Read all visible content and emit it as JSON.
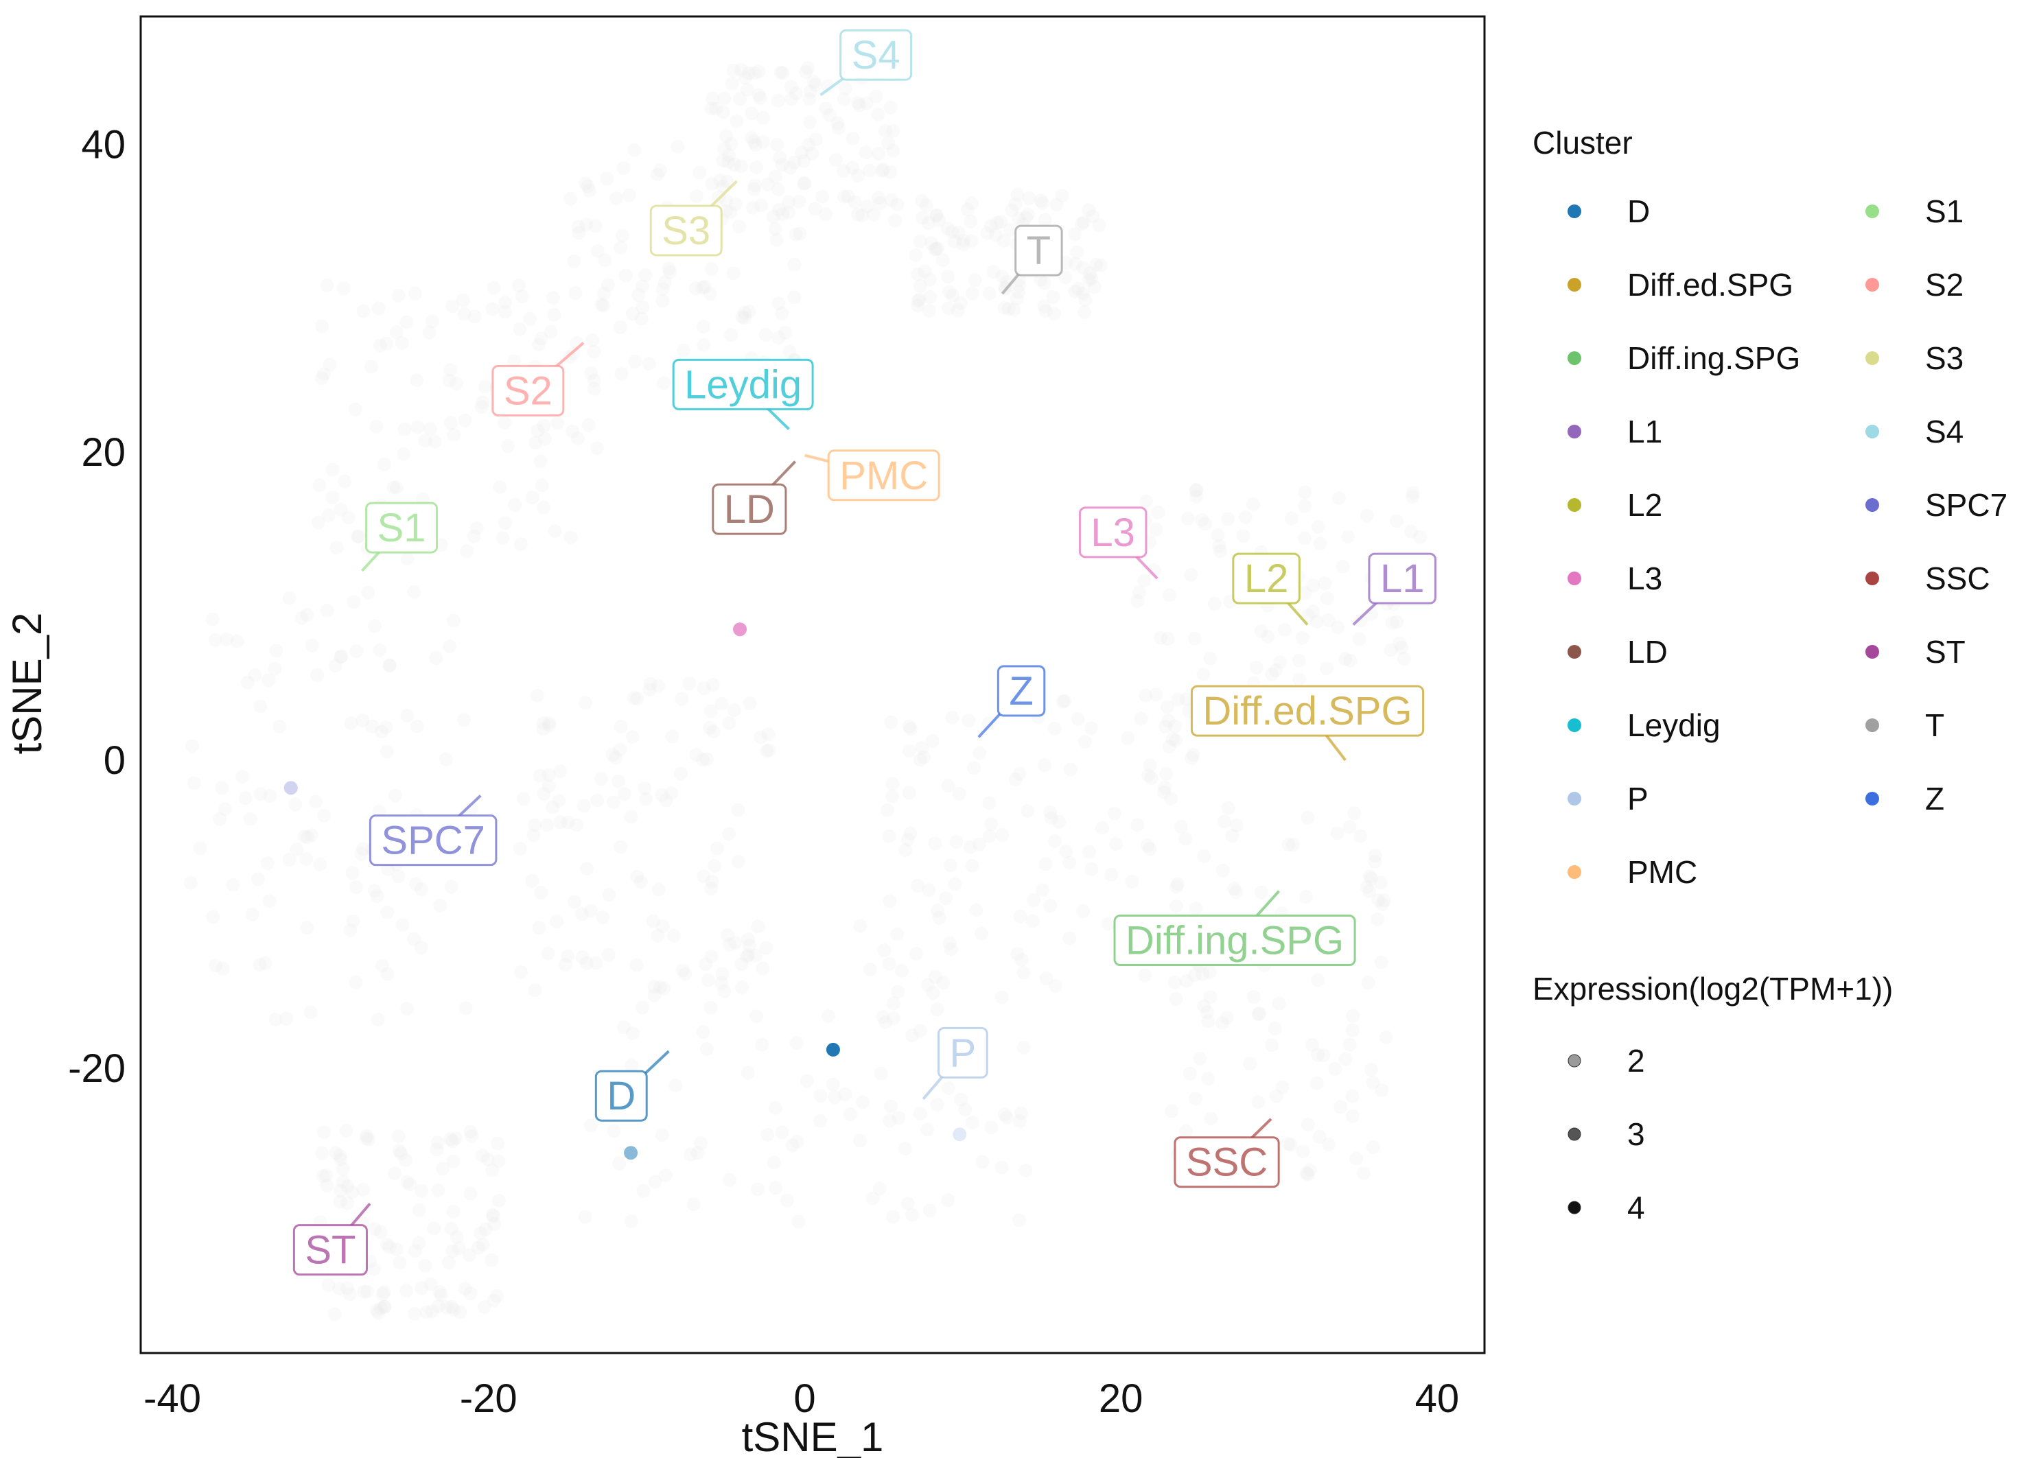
{
  "chart_data": {
    "type": "scatter",
    "xlabel": "tSNE_1",
    "ylabel": "tSNE_2",
    "xlim": [
      -42,
      43
    ],
    "ylim": [
      -38.5,
      48.3
    ],
    "x_ticks": [
      -40,
      -20,
      0,
      20,
      40
    ],
    "x_tick_labels": [
      "-40",
      "-20",
      "0",
      "20",
      "40"
    ],
    "y_ticks": [
      -20,
      0,
      20,
      40
    ],
    "y_tick_labels": [
      "-20",
      "0",
      "20",
      "40"
    ],
    "grid": false,
    "legend_position": "right",
    "colors": {
      "D": "#1f77b4",
      "Diff.ed.SPG": "#c9a227",
      "Diff.ing.SPG": "#6cc36c",
      "L1": "#9467bd",
      "L2": "#b5b82e",
      "L3": "#e377c2",
      "LD": "#8c564b",
      "Leydig": "#17becf",
      "P": "#aec7e8",
      "PMC": "#ffbb78",
      "S1": "#98df8a",
      "S2": "#ff9896",
      "S3": "#dbdb8d",
      "S4": "#9edae5",
      "SPC7": "#6b6ecf",
      "SSC": "#a94442",
      "ST": "#a5479a",
      "T": "#a0a0a0",
      "Z": "#3b6fe0"
    },
    "cluster_labels": [
      {
        "name": "S4",
        "label_x": 4.5,
        "label_y": 45.8,
        "anchor_x": 1.0,
        "anchor_y": 43.2
      },
      {
        "name": "S3",
        "label_x": -7.5,
        "label_y": 34.4,
        "anchor_x": -4.3,
        "anchor_y": 37.6
      },
      {
        "name": "T",
        "label_x": 14.8,
        "label_y": 33.1,
        "anchor_x": 12.5,
        "anchor_y": 30.3
      },
      {
        "name": "S2",
        "label_x": -17.5,
        "label_y": 24.0,
        "anchor_x": -14.0,
        "anchor_y": 27.1
      },
      {
        "name": "Leydig",
        "label_x": -3.9,
        "label_y": 24.4,
        "anchor_x": -1.0,
        "anchor_y": 21.5
      },
      {
        "name": "PMC",
        "label_x": 5.0,
        "label_y": 18.5,
        "anchor_x": 0.0,
        "anchor_y": 19.8
      },
      {
        "name": "LD",
        "label_x": -3.5,
        "label_y": 16.3,
        "anchor_x": -0.6,
        "anchor_y": 19.4
      },
      {
        "name": "S1",
        "label_x": -25.5,
        "label_y": 15.1,
        "anchor_x": -28.0,
        "anchor_y": 12.3
      },
      {
        "name": "L3",
        "label_x": 19.5,
        "label_y": 14.8,
        "anchor_x": 22.3,
        "anchor_y": 11.8
      },
      {
        "name": "L2",
        "label_x": 29.2,
        "label_y": 11.8,
        "anchor_x": 31.8,
        "anchor_y": 8.8
      },
      {
        "name": "L1",
        "label_x": 37.8,
        "label_y": 11.8,
        "anchor_x": 34.7,
        "anchor_y": 8.8
      },
      {
        "name": "Z",
        "label_x": 13.7,
        "label_y": 4.5,
        "anchor_x": 11.0,
        "anchor_y": 1.5
      },
      {
        "name": "Diff.ed.SPG",
        "label_x": 31.8,
        "label_y": 3.2,
        "anchor_x": 34.2,
        "anchor_y": 0.0
      },
      {
        "name": "SPC7",
        "label_x": -23.5,
        "label_y": -5.2,
        "anchor_x": -20.5,
        "anchor_y": -2.3
      },
      {
        "name": "Diff.ing.SPG",
        "label_x": 27.2,
        "label_y": -11.7,
        "anchor_x": 30.0,
        "anchor_y": -8.5
      },
      {
        "name": "P",
        "label_x": 10.0,
        "label_y": -19.0,
        "anchor_x": 7.5,
        "anchor_y": -22.0
      },
      {
        "name": "D",
        "label_x": -11.6,
        "label_y": -21.8,
        "anchor_x": -8.6,
        "anchor_y": -18.9
      },
      {
        "name": "SSC",
        "label_x": 26.7,
        "label_y": -26.1,
        "anchor_x": 29.5,
        "anchor_y": -23.3
      },
      {
        "name": "ST",
        "label_x": -30.0,
        "label_y": -31.8,
        "anchor_x": -27.5,
        "anchor_y": -28.8
      }
    ],
    "highlighted_points": [
      {
        "cluster": "L3",
        "x": -4.1,
        "y": 8.5,
        "expression": 2.6
      },
      {
        "cluster": "D",
        "x": 1.8,
        "y": -18.8,
        "expression": 3.0
      },
      {
        "cluster": "D",
        "x": -11.0,
        "y": -25.5,
        "expression": 2.3
      },
      {
        "cluster": "P",
        "x": 9.8,
        "y": -24.3,
        "expression": 2.1
      },
      {
        "cluster": "SPC7",
        "x": -32.5,
        "y": -1.8,
        "expression": 2.0
      }
    ],
    "legend": {
      "cluster_title": "Cluster",
      "cluster_entries": [
        "D",
        "Diff.ed.SPG",
        "Diff.ing.SPG",
        "L1",
        "L2",
        "L3",
        "LD",
        "Leydig",
        "P",
        "PMC",
        "S1",
        "S2",
        "S3",
        "S4",
        "SPC7",
        "SSC",
        "ST",
        "T",
        "Z"
      ],
      "expression_title": "Expression(log2(TPM+1))",
      "expression_entries": [
        {
          "label": "2",
          "color": "#9a9a9a"
        },
        {
          "label": "3",
          "color": "#555555"
        },
        {
          "label": "4",
          "color": "#111111"
        }
      ]
    }
  }
}
